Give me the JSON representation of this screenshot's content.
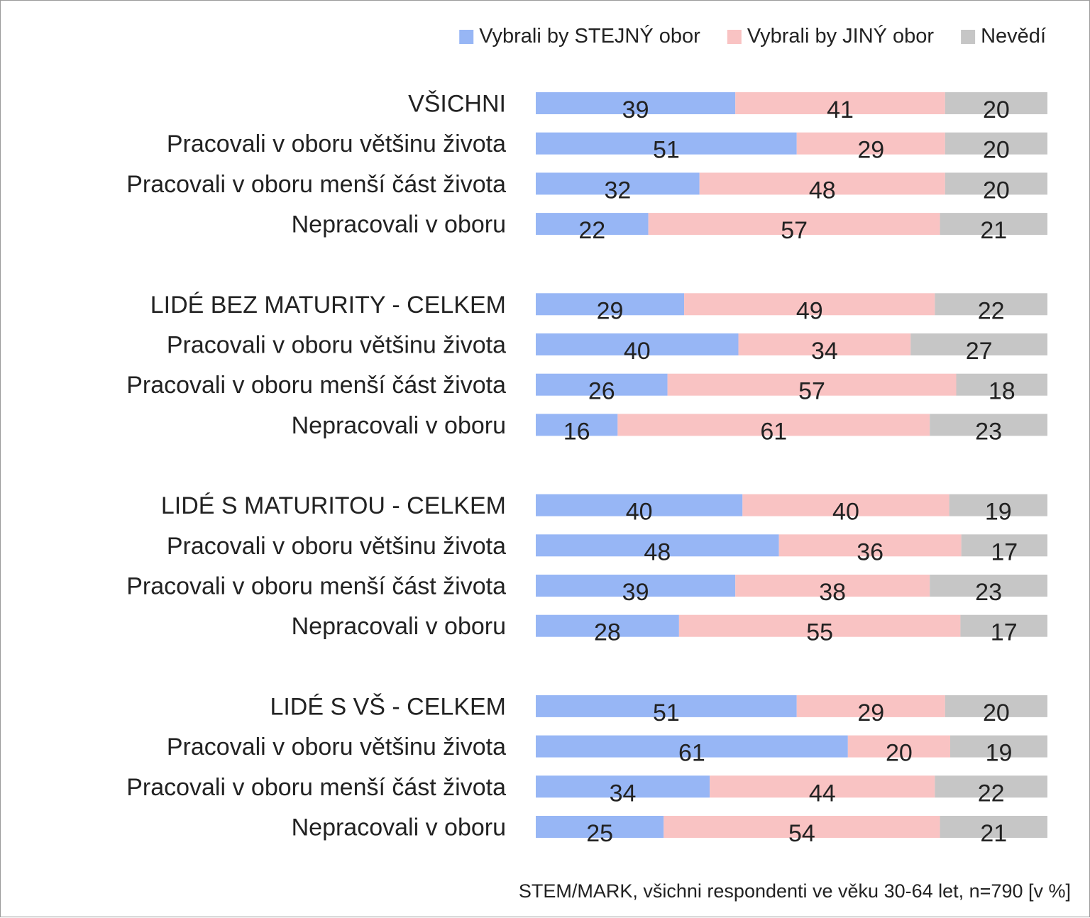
{
  "chart_data": {
    "type": "bar",
    "orientation": "horizontal",
    "stacked": true,
    "percent_stacked": true,
    "xlim": [
      0,
      100
    ],
    "grid": false,
    "legend_position": "top-right",
    "series": [
      {
        "name": "Vybrali by STEJNÝ obor",
        "color": "#97b6f5",
        "values": [
          39,
          51,
          32,
          22,
          29,
          40,
          26,
          16,
          40,
          48,
          39,
          28,
          51,
          61,
          34,
          25
        ]
      },
      {
        "name": "Vybrali by JINÝ obor",
        "color": "#f9c3c3",
        "values": [
          41,
          29,
          48,
          57,
          49,
          34,
          57,
          61,
          40,
          36,
          38,
          55,
          29,
          20,
          44,
          54
        ]
      },
      {
        "name": "Nevědí",
        "color": "#c6c6c6",
        "values": [
          20,
          20,
          20,
          21,
          22,
          27,
          18,
          23,
          19,
          17,
          23,
          17,
          20,
          19,
          22,
          21
        ]
      }
    ],
    "categories": [
      "VŠICHNI",
      "Pracovali v oboru většinu života",
      "Pracovali v oboru menší část života",
      "Nepracovali v oboru",
      "LIDÉ BEZ MATURITY - CELKEM",
      "Pracovali v oboru většinu života",
      "Pracovali v oboru menší část života",
      "Nepracovali v oboru",
      "LIDÉ S MATURITOU - CELKEM",
      "Pracovali v oboru většinu života",
      "Pracovali v oboru menší část života",
      "Nepracovali v oboru",
      "LIDÉ S VŠ - CELKEM",
      "Pracovali v oboru většinu života",
      "Pracovali v oboru menší část života",
      "Nepracovali v oboru"
    ],
    "title": "",
    "xlabel": "",
    "ylabel": ""
  },
  "source_note": "STEM/MARK, všichni respondenti ve věku 30-64 let, n=790 [v %]"
}
